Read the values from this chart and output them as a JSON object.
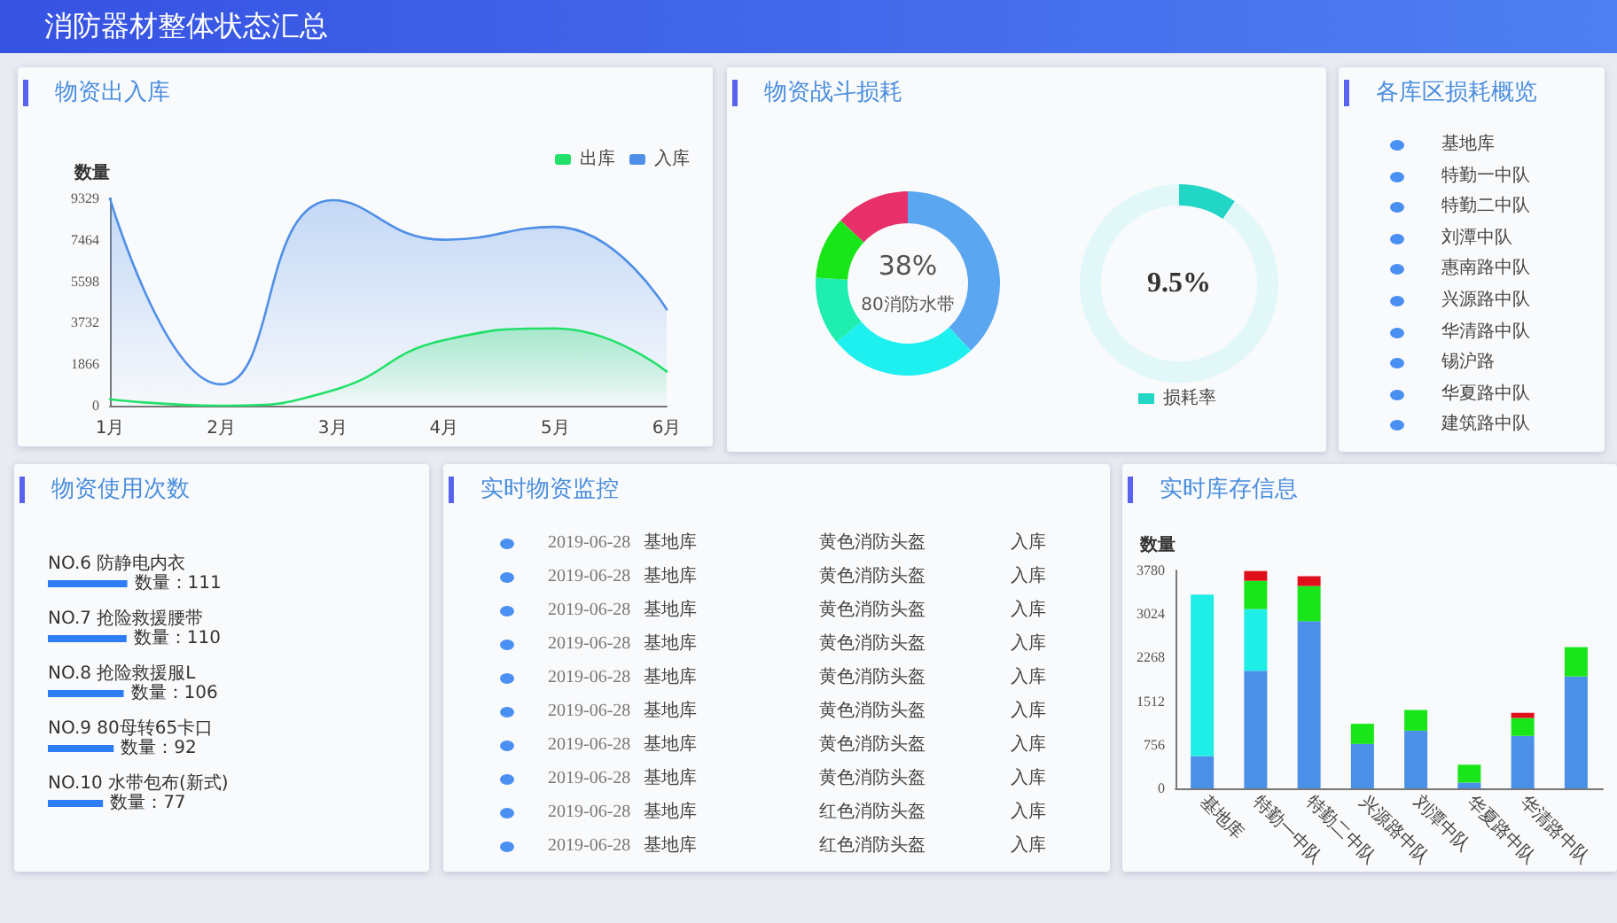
{
  "chart_data": [
    {
      "type": "other",
      "title": "消防器材整体状态汇总"
    },
    {
      "type": "area",
      "title": "物资出入库",
      "ylabel": "数量",
      "categories": [
        "1月",
        "2月",
        "3月",
        "4月",
        "5月",
        "6月"
      ],
      "series": [
        {
          "name": "出库",
          "color": "#22e06a",
          "values": [
            290,
            0,
            690,
            2950,
            3480,
            1540
          ]
        },
        {
          "name": "入库",
          "color": "#4f8fe8",
          "values": [
            9329,
            960,
            9250,
            7470,
            8050,
            4330
          ]
        }
      ],
      "ylim": [
        0,
        9329
      ],
      "yticks": [
        0,
        1866,
        3732,
        5598,
        7464,
        9329
      ],
      "legend": "top right"
    },
    {
      "type": "donut",
      "title": "物资战斗损耗",
      "categories": [
        "80消防水带",
        null,
        null,
        null,
        null
      ],
      "values": [
        38,
        26,
        12,
        11,
        13
      ],
      "colors": [
        "#5aa6f0",
        "#1ef0f0",
        "#1eefb0",
        "#19e619",
        "#e8306a"
      ],
      "value_labels": [
        "38%",
        null,
        null,
        null,
        null
      ]
    },
    {
      "type": "donut",
      "categories": [
        "损耗率",
        null
      ],
      "values": [
        9.5,
        90.5
      ],
      "colors": [
        "#22d6c6",
        "#e2f8f8"
      ],
      "value_labels": [
        "9.5%",
        null
      ],
      "legend": "bottom"
    },
    {
      "type": "other",
      "title": "各库区损耗概览",
      "annotations": [
        "基地库",
        "特勤一中队",
        "特勤二中队",
        "刘潭中队",
        "惠南路中队",
        "兴源路中队",
        "华清路中队",
        "锡沪路",
        "华夏路中队",
        "建筑路中队"
      ]
    },
    {
      "type": "bar",
      "orientation": "horizontal",
      "title": "物资使用次数",
      "categories": [
        "NO.6 防静电内衣",
        "NO.7 抢险救援腰带",
        "NO.8 抢险救援服L",
        "NO.9 80母转65卡口",
        "NO.10 水带包布(新式)"
      ],
      "values": [
        111,
        110,
        106,
        92,
        77
      ],
      "value_labels": [
        "数量：111",
        "数量：110",
        "数量：106",
        "数量：92",
        "数量：77"
      ],
      "color": "#2e7cf6",
      "tick_labels": "y"
    },
    {
      "type": "other",
      "title": "实时物资监控",
      "annotations": [
        "2019-06-28",
        "基地库",
        "黄色消防头盔",
        "入库",
        "2019-06-28",
        "基地库",
        "黄色消防头盔",
        "入库",
        "2019-06-28",
        "基地库",
        "黄色消防头盔",
        "入库",
        "2019-06-28",
        "基地库",
        "黄色消防头盔",
        "入库",
        "2019-06-28",
        "基地库",
        "黄色消防头盔",
        "入库",
        "2019-06-28",
        "基地库",
        "黄色消防头盔",
        "入库",
        "2019-06-28",
        "基地库",
        "黄色消防头盔",
        "入库",
        "2019-06-28",
        "基地库",
        "黄色消防头盔",
        "入库",
        "2019-06-28",
        "基地库",
        "红色消防头盔",
        "入库",
        "2019-06-28",
        "基地库",
        "红色消防头盔",
        "入库"
      ]
    },
    {
      "type": "bar",
      "stacked": true,
      "title": "实时库存信息",
      "ylabel": "数量",
      "categories": [
        "基地库",
        "特勤一中队",
        "特勤二中队",
        "兴源路中队",
        "刘潭中队",
        "华夏路中队",
        "华清路中队",
        null
      ],
      "series": [
        {
          "color": "#4a90e8",
          "values": [
            560,
            2040,
            2900,
            770,
            1000,
            100,
            910,
            1940
          ]
        },
        {
          "color": "#1eeee6",
          "values": [
            2800,
            1070,
            null,
            null,
            null,
            null,
            null,
            null
          ]
        },
        {
          "color": "#19e619",
          "values": [
            null,
            490,
            610,
            350,
            360,
            310,
            310,
            510
          ]
        },
        {
          "color": "#e0101a",
          "values": [
            null,
            170,
            170,
            null,
            null,
            null,
            90,
            null
          ]
        }
      ],
      "ylim": [
        0,
        3780
      ],
      "yticks": [
        0,
        756,
        1512,
        2268,
        3024,
        3780
      ]
    }
  ]
}
